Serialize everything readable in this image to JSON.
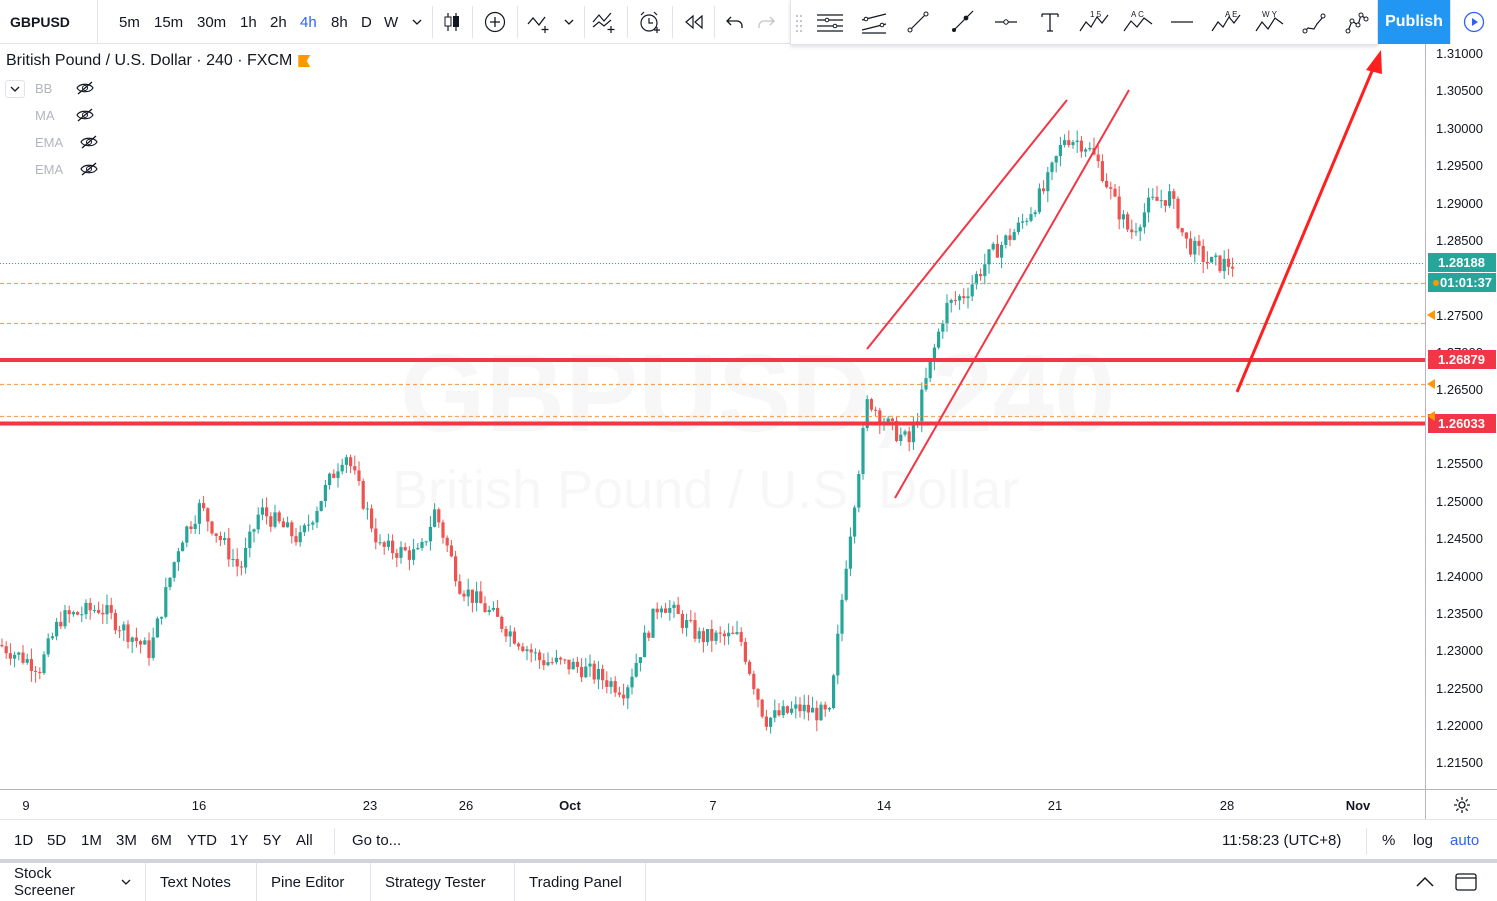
{
  "toolbar": {
    "symbol": "GBPUSD",
    "timeframes": [
      "5m",
      "15m",
      "30m",
      "1h",
      "2h",
      "4h",
      "8h",
      "D",
      "W"
    ],
    "active_timeframe": "4h",
    "icons": [
      "chevron-down-icon",
      "candles-icon",
      "compare-add-icon",
      "indicators-icon",
      "chevron-down-icon",
      "templates-icon",
      "alert-icon",
      "replay-icon",
      "undo-icon",
      "redo-icon"
    ],
    "publish_label": "Publish",
    "accent": "#2196f3"
  },
  "drawing_tools": [
    "horizontal-lines-icon",
    "parallel-channel-icon",
    "trend-line-icon",
    "ray-icon",
    "horizontal-ray-icon",
    "text-icon",
    "elliott-wave-1-5-icon",
    "abcd-pattern-icon",
    "horizontal-line-icon",
    "xabcd-pattern-icon",
    "wxy-wave-icon",
    "pencil-icon",
    "node-pattern-icon"
  ],
  "drawing_tool_labels": {
    "elliott": "1 5",
    "abcd": "A C",
    "xabcd": "A E",
    "wxy": "W Y"
  },
  "legend": {
    "title": "British Pound / U.S. Dollar · 240 · FXCM",
    "indicators": [
      "BB",
      "MA",
      "EMA",
      "EMA"
    ]
  },
  "watermark": {
    "symbol": "GBPUSD, 240",
    "description": "British Pound / U.S. Dollar"
  },
  "price_axis": {
    "labels": [
      "1.31000",
      "1.30500",
      "1.30000",
      "1.29500",
      "1.29000",
      "1.28500",
      "1.27500",
      "1.27000",
      "1.26500",
      "1.25500",
      "1.25000",
      "1.24500",
      "1.24000",
      "1.23500",
      "1.23000",
      "1.22500",
      "1.22000",
      "1.21500"
    ],
    "last_price": "1.28188",
    "countdown": "01:01:37",
    "level_upper": "1.26879",
    "level_lower": "1.26033",
    "colors": {
      "up": "#26a69a",
      "down": "#ef5350",
      "level": "#f23645",
      "dashed": "#f7a35c",
      "last": "#26a69a"
    }
  },
  "time_axis": [
    "9",
    "16",
    "23",
    "26",
    "Oct",
    "7",
    "14",
    "21",
    "28",
    "Nov"
  ],
  "period_bar": {
    "ranges": [
      "1D",
      "5D",
      "1M",
      "3M",
      "6M",
      "YTD",
      "1Y",
      "5Y",
      "All"
    ],
    "goto": "Go to...",
    "clock": "11:58:23 (UTC+8)",
    "percent": "%",
    "log": "log",
    "auto": "auto"
  },
  "bottom_tabs": [
    "Stock Screener",
    "Text Notes",
    "Pine Editor",
    "Strategy Tester",
    "Trading Panel"
  ]
}
